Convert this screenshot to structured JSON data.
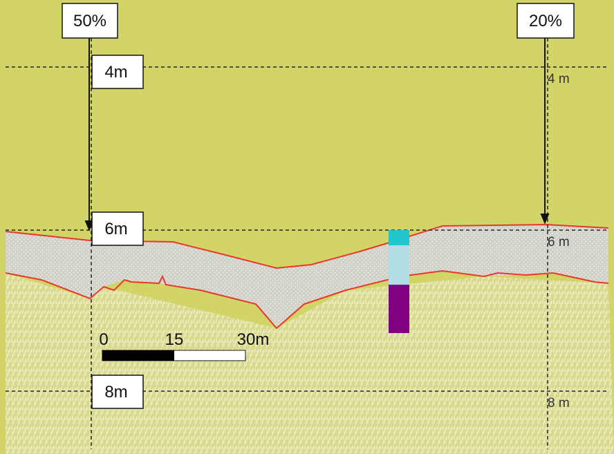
{
  "callouts": {
    "left_percent": "50%",
    "right_percent": "20%"
  },
  "depth_boxes": [
    "4m",
    "6m",
    "8m"
  ],
  "depth_marks": [
    "4 m",
    "6 m",
    "8 m"
  ],
  "scale_bar": {
    "labels": [
      "0",
      "15",
      "30m"
    ]
  }
}
